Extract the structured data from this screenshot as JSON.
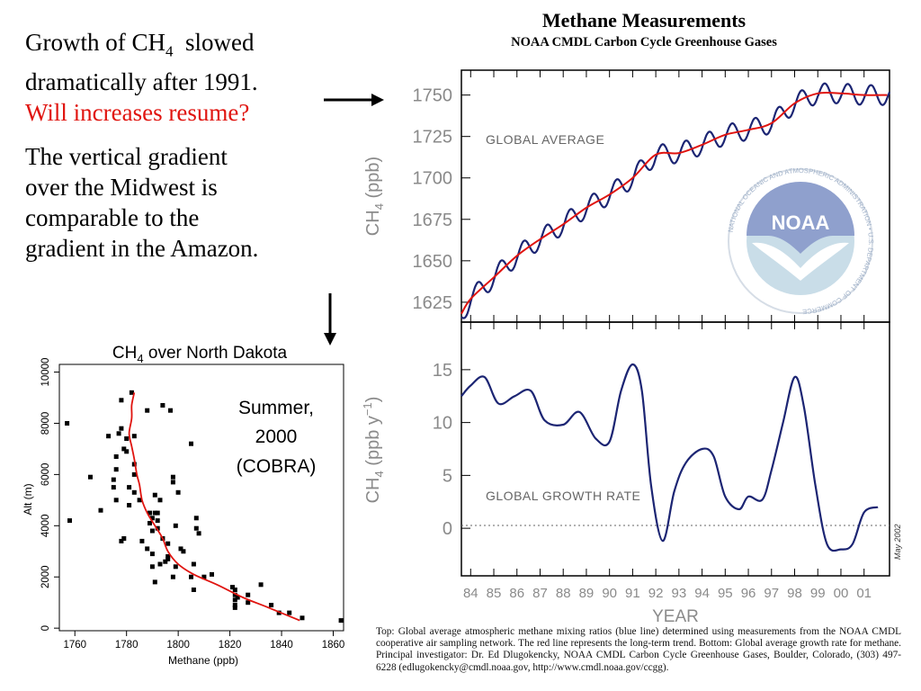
{
  "slide": {
    "lines": [
      {
        "text": "Growth of CH",
        "sub": "4",
        "rest": "  slowed"
      },
      {
        "text": "dramatically after  1991."
      },
      {
        "text": "Will increases resume?"
      }
    ],
    "para2": [
      "The vertical gradient",
      "over the Midwest is",
      "comparable to the",
      "gradient in the Amazon."
    ]
  },
  "noaa": {
    "title": "Methane Measurements",
    "subtitle": "NOAA CMDL Carbon Cycle Greenhouse Gases",
    "logo_text": "NOAA",
    "seal_text": "NATIONAL OCEANIC AND ATMOSPHERIC ADMINISTRATION • U.S. DEPARTMENT OF COMMERCE",
    "stamp": "May 2002",
    "caption": "Top: Global average atmospheric methane mixing ratios (blue line) determined using measurements from the NOAA CMDL cooperative air sampling network. The red line represents the long-term trend. Bottom: Global average growth rate for methane. Principal investigator: Dr. Ed Dlugokencky, NOAA CMDL Carbon Cycle Greenhouse Gases, Boulder, Colorado, (303) 497-6228 (edlugokencky@cmdl.noaa.gov, http://www.cmdl.noaa.gov/ccgg)."
  },
  "colors": {
    "series_blue": "#1c2573",
    "trend_red": "#e0140f",
    "axis_gray": "#8a8a8a",
    "noaa_blue": "#8fa0cd",
    "noaa_light": "#c9dde8"
  },
  "chart_data": [
    {
      "type": "line",
      "label": "GLOBAL AVERAGE",
      "ylabel": "CH4 (ppb)",
      "ylim": [
        1613,
        1765
      ],
      "xlim": [
        1983.6,
        2002.1
      ],
      "yticks": [
        1625,
        1650,
        1675,
        1700,
        1725,
        1750
      ],
      "x": [
        1983.6,
        1984,
        1985,
        1986,
        1987,
        1988,
        1989,
        1990,
        1991,
        1992,
        1993,
        1994,
        1995,
        1996,
        1997,
        1998,
        1999,
        2000,
        2001,
        2002
      ],
      "series": [
        {
          "name": "trend",
          "values": [
            1618,
            1627,
            1640,
            1653,
            1663,
            1672,
            1682,
            1690,
            1700,
            1714,
            1715,
            1720,
            1726,
            1729,
            1733,
            1745,
            1751,
            1751,
            1750,
            1750
          ]
        },
        {
          "name": "seasonal_amplitude",
          "values": [
            6,
            6,
            6,
            6,
            6,
            6,
            6,
            6,
            6,
            6,
            6,
            6,
            6,
            6,
            6,
            6,
            6,
            6,
            6,
            6
          ]
        }
      ],
      "grid": false
    },
    {
      "type": "line",
      "label": "GLOBAL GROWTH RATE",
      "ylabel": "CH4 (ppb y-1)",
      "xlabel": "YEAR",
      "ylim": [
        -4.5,
        19.5
      ],
      "xlim": [
        1983.6,
        2002.1
      ],
      "yticks": [
        0,
        5,
        10,
        15
      ],
      "xticklabels": [
        "84",
        "85",
        "86",
        "87",
        "88",
        "89",
        "90",
        "91",
        "92",
        "93",
        "94",
        "95",
        "96",
        "97",
        "98",
        "99",
        "00",
        "01"
      ],
      "x": [
        1983.6,
        1984,
        1984.6,
        1985.2,
        1985.9,
        1986.6,
        1987.2,
        1988,
        1988.7,
        1989.4,
        1990,
        1990.5,
        1991,
        1991.4,
        1991.8,
        1992.3,
        1992.8,
        1993.3,
        1994,
        1994.5,
        1995,
        1995.6,
        1996,
        1996.6,
        1997,
        1997.5,
        1998,
        1998.4,
        1998.9,
        1999.4,
        2000,
        2000.5,
        2001,
        2001.6
      ],
      "values": [
        12.5,
        13.5,
        14.3,
        11.8,
        12.5,
        13,
        10.2,
        9.8,
        11,
        8.5,
        8.2,
        13,
        15.5,
        13,
        4,
        -1.2,
        3.5,
        6.2,
        7.5,
        6.8,
        3,
        1.8,
        3,
        2.7,
        5.5,
        10,
        14.3,
        11.5,
        4,
        -1.5,
        -2,
        -1.5,
        1.5,
        2
      ],
      "baseline": 0,
      "grid": false
    },
    {
      "type": "scatter",
      "title": "CH4 over North Dakota",
      "annotation": [
        "Summer,",
        "2000",
        "(COBRA)"
      ],
      "xlabel": "Methane (ppb)",
      "ylabel": "Alt (m)",
      "xlim": [
        1754,
        1864
      ],
      "ylim": [
        -100,
        10300
      ],
      "xticks": [
        1760,
        1780,
        1800,
        1820,
        1840,
        1860
      ],
      "yticks": [
        0,
        2000,
        4000,
        6000,
        8000,
        10000
      ],
      "points": [
        [
          1757,
          8000
        ],
        [
          1758,
          4200
        ],
        [
          1766,
          5900
        ],
        [
          1770,
          4600
        ],
        [
          1773,
          7500
        ],
        [
          1775,
          5500
        ],
        [
          1775,
          5800
        ],
        [
          1776,
          6200
        ],
        [
          1776,
          6700
        ],
        [
          1776,
          5000
        ],
        [
          1777,
          7600
        ],
        [
          1778,
          8900
        ],
        [
          1778,
          7800
        ],
        [
          1778,
          3400
        ],
        [
          1779,
          3500
        ],
        [
          1779,
          7000
        ],
        [
          1780,
          7400
        ],
        [
          1780,
          6900
        ],
        [
          1781,
          5500
        ],
        [
          1781,
          4800
        ],
        [
          1782,
          9200
        ],
        [
          1783,
          7500
        ],
        [
          1783,
          6400
        ],
        [
          1783,
          5300
        ],
        [
          1783,
          6000
        ],
        [
          1785,
          5000
        ],
        [
          1786,
          3400
        ],
        [
          1788,
          3100
        ],
        [
          1788,
          8500
        ],
        [
          1789,
          4500
        ],
        [
          1789,
          4100
        ],
        [
          1790,
          4300
        ],
        [
          1790,
          3800
        ],
        [
          1790,
          2900
        ],
        [
          1790,
          2400
        ],
        [
          1791,
          5200
        ],
        [
          1791,
          4500
        ],
        [
          1791,
          1800
        ],
        [
          1792,
          4500
        ],
        [
          1792,
          4200
        ],
        [
          1792,
          3900
        ],
        [
          1793,
          2500
        ],
        [
          1793,
          5000
        ],
        [
          1794,
          3500
        ],
        [
          1794,
          8700
        ],
        [
          1795,
          2600
        ],
        [
          1796,
          3300
        ],
        [
          1796,
          2700
        ],
        [
          1796,
          2800
        ],
        [
          1797,
          8500
        ],
        [
          1798,
          5700
        ],
        [
          1798,
          5900
        ],
        [
          1798,
          2000
        ],
        [
          1799,
          4000
        ],
        [
          1799,
          2400
        ],
        [
          1800,
          5300
        ],
        [
          1801,
          3100
        ],
        [
          1802,
          3000
        ],
        [
          1805,
          7200
        ],
        [
          1805,
          2000
        ],
        [
          1806,
          1500
        ],
        [
          1806,
          2500
        ],
        [
          1807,
          4300
        ],
        [
          1807,
          3900
        ],
        [
          1808,
          3700
        ],
        [
          1810,
          2000
        ],
        [
          1813,
          2100
        ],
        [
          1821,
          1600
        ],
        [
          1822,
          1500
        ],
        [
          1822,
          1300
        ],
        [
          1822,
          1100
        ],
        [
          1822,
          900
        ],
        [
          1822,
          800
        ],
        [
          1823,
          1200
        ],
        [
          1827,
          1300
        ],
        [
          1827,
          1000
        ],
        [
          1832,
          1700
        ],
        [
          1836,
          900
        ],
        [
          1839,
          600
        ],
        [
          1843,
          600
        ],
        [
          1848,
          400
        ],
        [
          1863,
          300
        ]
      ],
      "trend": {
        "x": [
          1783,
          1782,
          1782,
          1781,
          1782,
          1783,
          1784,
          1785,
          1786,
          1788,
          1791,
          1794,
          1796,
          1800,
          1806,
          1815,
          1825,
          1835,
          1847
        ],
        "y": [
          9200,
          8700,
          8200,
          7600,
          7100,
          6600,
          6000,
          5600,
          5000,
          4500,
          4000,
          3500,
          3000,
          2500,
          2100,
          1700,
          1200,
          800,
          300
        ]
      }
    }
  ]
}
